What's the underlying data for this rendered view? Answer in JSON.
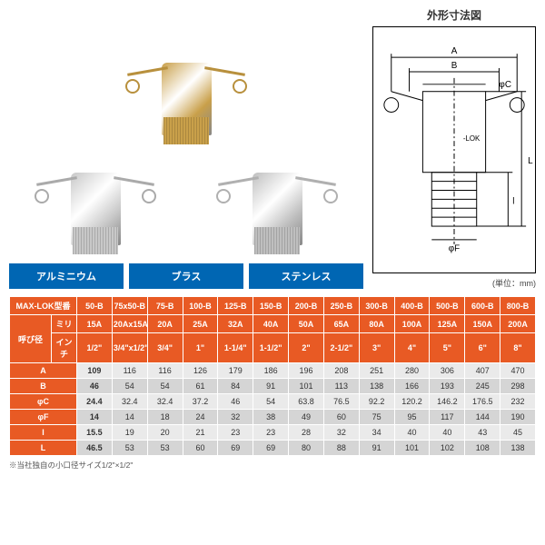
{
  "colors": {
    "header_bg": "#e85a24",
    "rowhead_bg": "#e85a24",
    "row_even": "#eaeaea",
    "row_odd": "#d5d5d5",
    "label_bg": "#0066b3",
    "brass": "#c9a04a",
    "aluminum": "#c8c8c8",
    "stainless": "#bfbfbf",
    "lever_al": "#aaaaaa",
    "lever_br": "#b8903d",
    "lever_ss": "#b0b0b0"
  },
  "diagram": {
    "title": "外形寸法図",
    "unit": "(単位：mm)",
    "labels": {
      "A": "A",
      "B": "B",
      "C": "φC",
      "F": "φF",
      "l": "l",
      "L": "L",
      "brand": "-LOK"
    }
  },
  "materials": {
    "aluminum": "アルミニウム",
    "brass": "ブラス",
    "stainless": "ステンレス"
  },
  "table": {
    "header_model": "MAX-LOK型番",
    "header_nominal": "呼び径",
    "header_mm": "ミリ",
    "header_inch": "インチ",
    "models": [
      "50-B",
      "75x50-B",
      "75-B",
      "100-B",
      "125-B",
      "150-B",
      "200-B",
      "250-B",
      "300-B",
      "400-B",
      "500-B",
      "600-B",
      "800-B"
    ],
    "mm": [
      "15A",
      "20Ax15A",
      "20A",
      "25A",
      "32A",
      "40A",
      "50A",
      "65A",
      "80A",
      "100A",
      "125A",
      "150A",
      "200A"
    ],
    "inch": [
      "1/2\"",
      "3/4\"x1/2\"",
      "3/4\"",
      "1\"",
      "1-1/4\"",
      "1-1/2\"",
      "2\"",
      "2-1/2\"",
      "3\"",
      "4\"",
      "5\"",
      "6\"",
      "8\""
    ],
    "rows": [
      {
        "label": "A",
        "vals": [
          "109",
          "116",
          "116",
          "126",
          "179",
          "186",
          "196",
          "208",
          "251",
          "280",
          "306",
          "407",
          "470"
        ],
        "bold_first": true
      },
      {
        "label": "B",
        "vals": [
          "46",
          "54",
          "54",
          "61",
          "84",
          "91",
          "101",
          "113",
          "138",
          "166",
          "193",
          "245",
          "298"
        ],
        "bold_first": true
      },
      {
        "label": "φC",
        "vals": [
          "24.4",
          "32.4",
          "32.4",
          "37.2",
          "46",
          "54",
          "63.8",
          "76.5",
          "92.2",
          "120.2",
          "146.2",
          "176.5",
          "232"
        ],
        "bold_first": true
      },
      {
        "label": "φF",
        "vals": [
          "14",
          "14",
          "18",
          "24",
          "32",
          "38",
          "49",
          "60",
          "75",
          "95",
          "117",
          "144",
          "190"
        ],
        "bold_first": true
      },
      {
        "label": "l",
        "vals": [
          "15.5",
          "19",
          "20",
          "21",
          "23",
          "23",
          "28",
          "32",
          "34",
          "40",
          "40",
          "43",
          "45"
        ],
        "bold_first": true
      },
      {
        "label": "L",
        "vals": [
          "46.5",
          "53",
          "53",
          "60",
          "69",
          "69",
          "80",
          "88",
          "91",
          "101",
          "102",
          "108",
          "138"
        ],
        "bold_first": true
      }
    ],
    "footnote": "※当社独自の小口径サイズ1/2\"×1/2\""
  }
}
